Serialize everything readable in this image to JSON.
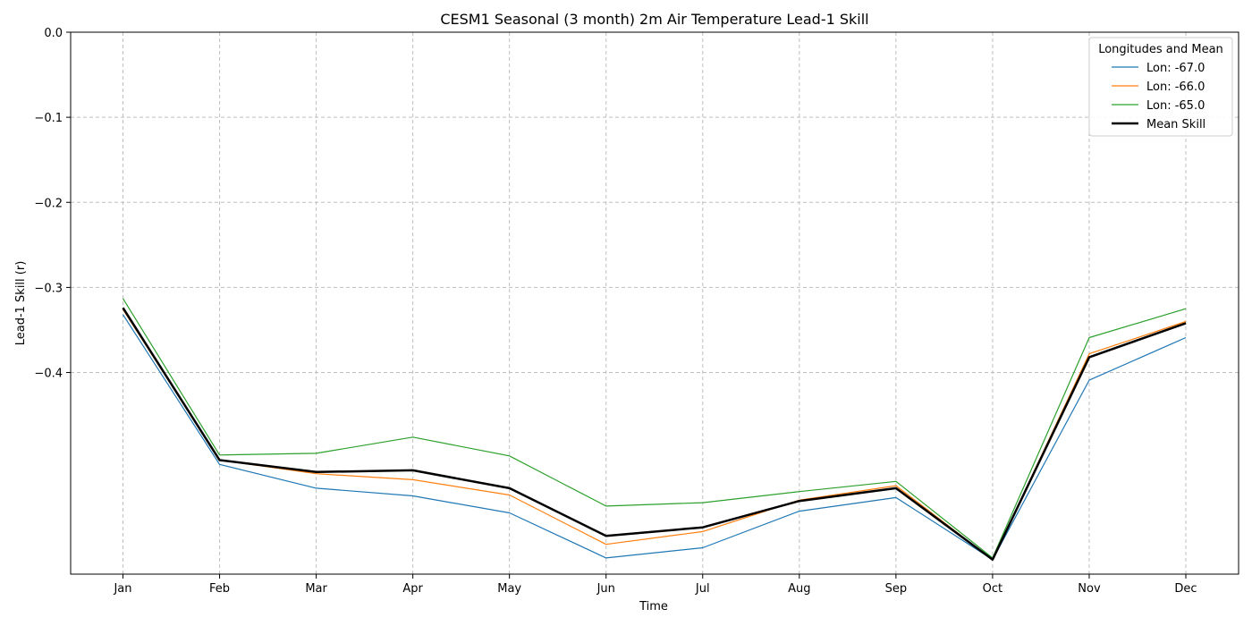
{
  "chart_data": {
    "type": "line",
    "title": "CESM1 Seasonal (3 month) 2m Air Temperature Lead-1 Skill",
    "xlabel": "Time",
    "ylabel": "Lead-1 Skill (r)",
    "categories": [
      "Jan",
      "Feb",
      "Mar",
      "Apr",
      "May",
      "Jun",
      "Jul",
      "Aug",
      "Sep",
      "Oct",
      "Nov",
      "Dec"
    ],
    "ylim": [
      -0.637,
      0.0
    ],
    "yticks": [
      0.0,
      -0.1,
      -0.2,
      -0.3,
      -0.4
    ],
    "ytick_labels": [
      "0.0",
      "−0.1",
      "−0.2",
      "−0.3",
      "−0.4"
    ],
    "grid": true,
    "legend": {
      "title": "Longitudes and Mean",
      "position": "top-right"
    },
    "series": [
      {
        "name": "Lon: -67.0",
        "color": "#1f77b4",
        "width": "thin",
        "values": [
          -0.332,
          -0.508,
          -0.536,
          -0.545,
          -0.565,
          -0.618,
          -0.606,
          -0.563,
          -0.547,
          -0.62,
          -0.409,
          -0.359
        ]
      },
      {
        "name": "Lon: -66.0",
        "color": "#ff7f0e",
        "width": "thin",
        "values": [
          -0.326,
          -0.503,
          -0.519,
          -0.526,
          -0.544,
          -0.602,
          -0.587,
          -0.55,
          -0.533,
          -0.62,
          -0.378,
          -0.34
        ]
      },
      {
        "name": "Lon: -65.0",
        "color": "#2ca02c",
        "width": "thin",
        "values": [
          -0.313,
          -0.497,
          -0.495,
          -0.476,
          -0.498,
          -0.557,
          -0.553,
          -0.54,
          -0.528,
          -0.618,
          -0.359,
          -0.325
        ]
      },
      {
        "name": "Mean Skill",
        "color": "#000000",
        "width": "thick",
        "values": [
          -0.324,
          -0.503,
          -0.517,
          -0.515,
          -0.536,
          -0.592,
          -0.582,
          -0.551,
          -0.536,
          -0.62,
          -0.382,
          -0.342
        ]
      }
    ]
  }
}
